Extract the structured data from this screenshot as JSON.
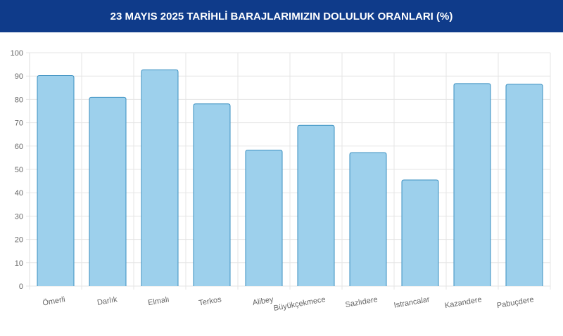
{
  "chart_data": {
    "type": "bar",
    "title": "23 MAYIS 2025 TARİHLİ BARAJLARIMIZIN DOLULUK ORANLARI (%)",
    "categories": [
      "Ömerli",
      "Darlık",
      "Elmalı",
      "Terkos",
      "Alibey",
      "Büyükçekmece",
      "Sazlıdere",
      "Istrancalar",
      "Kazandere",
      "Pabuçdere"
    ],
    "values": [
      90.2,
      80.9,
      92.7,
      78.1,
      58.3,
      68.9,
      57.2,
      45.5,
      86.8,
      86.5
    ],
    "ylim": [
      0,
      100
    ],
    "yticks": [
      0,
      10,
      20,
      30,
      40,
      50,
      60,
      70,
      80,
      90,
      100
    ],
    "grid": true,
    "colors": {
      "bar_fill": "#9dd0ec",
      "bar_border": "#3a8fc0",
      "header": "#0f3b8a"
    }
  }
}
